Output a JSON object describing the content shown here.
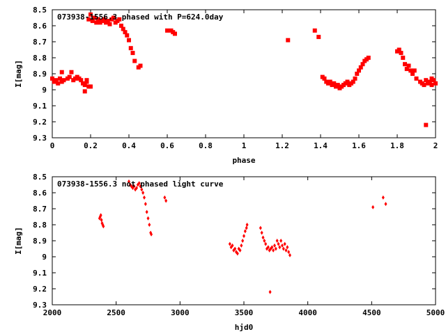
{
  "chart_data": [
    {
      "type": "scatter",
      "title": "073938-1556.3 phased with P=624.0day",
      "xlabel": "phase",
      "ylabel": "I[mag]",
      "xlim": [
        0,
        2
      ],
      "ylim": [
        8.5,
        9.3
      ],
      "y_inverted": true,
      "grid": false,
      "x_ticks": [
        "0",
        "0.2",
        "0.4",
        "0.6",
        "0.8",
        "1",
        "1.2",
        "1.4",
        "1.6",
        "1.8",
        "2"
      ],
      "y_ticks": [
        "8.5",
        "8.6",
        "8.7",
        "8.8",
        "8.9",
        "9",
        "9.1",
        "9.2",
        "9.3"
      ],
      "marker_color": "#ff0000",
      "series": [
        {
          "points": [
            [
              0.0,
              8.93
            ],
            [
              0.01,
              8.95
            ],
            [
              0.02,
              8.94
            ],
            [
              0.03,
              8.96
            ],
            [
              0.04,
              8.93
            ],
            [
              0.05,
              8.95
            ],
            [
              0.06,
              8.94
            ],
            [
              0.05,
              8.89
            ],
            [
              0.08,
              8.93
            ],
            [
              0.09,
              8.92
            ],
            [
              0.1,
              8.89
            ],
            [
              0.11,
              8.94
            ],
            [
              0.12,
              8.93
            ],
            [
              0.13,
              8.92
            ],
            [
              0.14,
              8.93
            ],
            [
              0.15,
              8.94
            ],
            [
              0.16,
              8.96
            ],
            [
              0.17,
              8.97
            ],
            [
              0.17,
              9.01
            ],
            [
              0.18,
              8.95
            ],
            [
              0.19,
              8.98
            ],
            [
              0.2,
              8.98
            ],
            [
              0.18,
              8.94
            ],
            [
              0.19,
              8.56
            ],
            [
              0.2,
              8.53
            ],
            [
              0.21,
              8.57
            ],
            [
              0.22,
              8.55
            ],
            [
              0.23,
              8.58
            ],
            [
              0.24,
              8.56
            ],
            [
              0.25,
              8.58
            ],
            [
              0.26,
              8.57
            ],
            [
              0.27,
              8.56
            ],
            [
              0.28,
              8.58
            ],
            [
              0.29,
              8.57
            ],
            [
              0.3,
              8.59
            ],
            [
              0.31,
              8.56
            ],
            [
              0.32,
              8.55
            ],
            [
              0.33,
              8.58
            ],
            [
              0.34,
              8.57
            ],
            [
              0.35,
              8.56
            ],
            [
              0.36,
              8.6
            ],
            [
              0.37,
              8.62
            ],
            [
              0.38,
              8.64
            ],
            [
              0.39,
              8.66
            ],
            [
              0.4,
              8.69
            ],
            [
              0.41,
              8.74
            ],
            [
              0.42,
              8.77
            ],
            [
              0.43,
              8.82
            ],
            [
              0.45,
              8.86
            ],
            [
              0.46,
              8.85
            ],
            [
              0.6,
              8.63
            ],
            [
              0.62,
              8.63
            ],
            [
              0.63,
              8.64
            ],
            [
              0.64,
              8.65
            ],
            [
              1.23,
              8.69
            ],
            [
              1.37,
              8.63
            ],
            [
              1.39,
              8.67
            ],
            [
              1.41,
              8.92
            ],
            [
              1.42,
              8.93
            ],
            [
              1.43,
              8.95
            ],
            [
              1.44,
              8.96
            ],
            [
              1.45,
              8.95
            ],
            [
              1.46,
              8.97
            ],
            [
              1.47,
              8.96
            ],
            [
              1.48,
              8.98
            ],
            [
              1.49,
              8.97
            ],
            [
              1.5,
              8.99
            ],
            [
              1.51,
              8.98
            ],
            [
              1.52,
              8.97
            ],
            [
              1.53,
              8.96
            ],
            [
              1.54,
              8.95
            ],
            [
              1.55,
              8.97
            ],
            [
              1.56,
              8.96
            ],
            [
              1.57,
              8.95
            ],
            [
              1.58,
              8.93
            ],
            [
              1.59,
              8.9
            ],
            [
              1.6,
              8.88
            ],
            [
              1.61,
              8.86
            ],
            [
              1.62,
              8.84
            ],
            [
              1.63,
              8.82
            ],
            [
              1.64,
              8.81
            ],
            [
              1.65,
              8.8
            ],
            [
              1.8,
              8.76
            ],
            [
              1.81,
              8.75
            ],
            [
              1.82,
              8.77
            ],
            [
              1.83,
              8.8
            ],
            [
              1.84,
              8.84
            ],
            [
              1.85,
              8.87
            ],
            [
              1.86,
              8.85
            ],
            [
              1.87,
              8.88
            ],
            [
              1.88,
              8.9
            ],
            [
              1.89,
              8.88
            ],
            [
              1.9,
              8.93
            ],
            [
              1.92,
              8.95
            ],
            [
              1.93,
              8.96
            ],
            [
              1.94,
              8.97
            ],
            [
              1.95,
              8.94
            ],
            [
              1.96,
              8.96
            ],
            [
              1.97,
              8.95
            ],
            [
              1.98,
              8.97
            ],
            [
              1.99,
              8.94
            ],
            [
              2.0,
              8.96
            ],
            [
              1.98,
              8.93
            ],
            [
              1.95,
              9.22
            ]
          ]
        }
      ]
    },
    {
      "type": "scatter",
      "title": "073938-1556.3 not phased light curve",
      "xlabel": "hjd0",
      "ylabel": "I[mag]",
      "xlim": [
        2000,
        5000
      ],
      "ylim": [
        8.5,
        9.3
      ],
      "y_inverted": true,
      "grid": false,
      "x_ticks": [
        "2000",
        "2500",
        "3000",
        "3500",
        "4000",
        "4500",
        "5000"
      ],
      "y_ticks": [
        "8.5",
        "8.6",
        "8.7",
        "8.8",
        "8.9",
        "9",
        "9.1",
        "9.2",
        "9.3"
      ],
      "marker_color": "#ff0000",
      "series": [
        {
          "points": [
            [
              2370,
              8.76
            ],
            [
              2375,
              8.75
            ],
            [
              2380,
              8.74
            ],
            [
              2385,
              8.77
            ],
            [
              2390,
              8.79
            ],
            [
              2395,
              8.8
            ],
            [
              2400,
              8.81
            ],
            [
              2600,
              8.53
            ],
            [
              2610,
              8.55
            ],
            [
              2620,
              8.56
            ],
            [
              2630,
              8.57
            ],
            [
              2640,
              8.56
            ],
            [
              2650,
              8.58
            ],
            [
              2660,
              8.57
            ],
            [
              2670,
              8.55
            ],
            [
              2680,
              8.54
            ],
            [
              2690,
              8.56
            ],
            [
              2700,
              8.58
            ],
            [
              2710,
              8.6
            ],
            [
              2720,
              8.63
            ],
            [
              2730,
              8.67
            ],
            [
              2740,
              8.72
            ],
            [
              2750,
              8.76
            ],
            [
              2760,
              8.8
            ],
            [
              2770,
              8.85
            ],
            [
              2775,
              8.86
            ],
            [
              2880,
              8.63
            ],
            [
              2890,
              8.65
            ],
            [
              3390,
              8.92
            ],
            [
              3400,
              8.94
            ],
            [
              3410,
              8.93
            ],
            [
              3420,
              8.96
            ],
            [
              3430,
              8.95
            ],
            [
              3440,
              8.97
            ],
            [
              3450,
              8.98
            ],
            [
              3460,
              8.95
            ],
            [
              3470,
              8.96
            ],
            [
              3480,
              8.93
            ],
            [
              3490,
              8.9
            ],
            [
              3500,
              8.87
            ],
            [
              3510,
              8.84
            ],
            [
              3520,
              8.82
            ],
            [
              3525,
              8.8
            ],
            [
              3630,
              8.82
            ],
            [
              3640,
              8.85
            ],
            [
              3650,
              8.88
            ],
            [
              3660,
              8.9
            ],
            [
              3670,
              8.92
            ],
            [
              3680,
              8.95
            ],
            [
              3690,
              8.94
            ],
            [
              3700,
              8.96
            ],
            [
              3705,
              9.22
            ],
            [
              3710,
              8.95
            ],
            [
              3720,
              8.94
            ],
            [
              3730,
              8.96
            ],
            [
              3740,
              8.93
            ],
            [
              3750,
              8.95
            ],
            [
              3760,
              8.9
            ],
            [
              3770,
              8.92
            ],
            [
              3780,
              8.94
            ],
            [
              3790,
              8.9
            ],
            [
              3800,
              8.93
            ],
            [
              3810,
              8.95
            ],
            [
              3820,
              8.92
            ],
            [
              3830,
              8.96
            ],
            [
              3840,
              8.94
            ],
            [
              3850,
              8.97
            ],
            [
              3860,
              8.99
            ],
            [
              4510,
              8.69
            ],
            [
              4590,
              8.63
            ],
            [
              4610,
              8.67
            ]
          ]
        }
      ]
    }
  ]
}
